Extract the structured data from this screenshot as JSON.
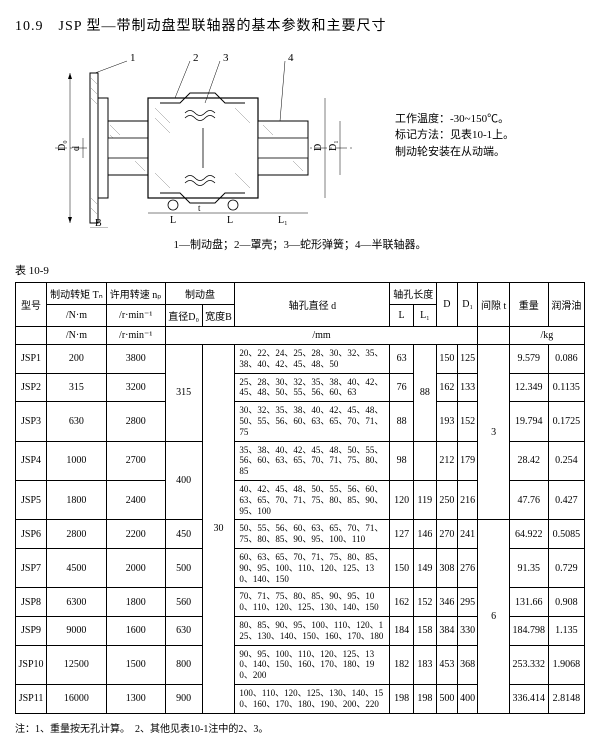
{
  "title": "10.9　JSP 型—带制动盘型联轴器的基本参数和主要尺寸",
  "diagram": {
    "part_labels": [
      "1",
      "2",
      "3",
      "4"
    ],
    "dim_labels": [
      "D₀",
      "d",
      "L",
      "t",
      "L",
      "L₁",
      "D",
      "D₁",
      "B"
    ]
  },
  "notes": {
    "line1": "工作温度：-30~150℃。",
    "line2": "标记方法：见表10-1上。",
    "line3": "制动轮安装在从动端。"
  },
  "caption": "1—制动盘；2—罩壳；3—蛇形弹簧；4—半联轴器。",
  "table_label": "表 10-9",
  "headers": {
    "model": "型号",
    "tn": "制动转矩\nTₙ",
    "np": "许用转速\nnₚ",
    "brake_disc": "制动盘",
    "d0": "直径D₀",
    "b": "宽度B",
    "d": "轴孔直径\nd",
    "bore_len": "轴孔长度",
    "l": "L",
    "l1": "L₁",
    "D": "D",
    "D1": "D₁",
    "t": "间隙\nt",
    "weight": "重量",
    "oil": "润滑油",
    "unit_nm": "/N·m",
    "unit_rpm": "/r·min⁻¹",
    "unit_mm": "/mm",
    "unit_kg": "/kg"
  },
  "rows": [
    {
      "model": "JSP1",
      "tn": "200",
      "np": "3800",
      "d0": "315",
      "b": "30",
      "d": "20、22、24、25、28、30、32、35、38、40、42、45、48、50",
      "l": "63",
      "l1": "",
      "ls": "88",
      "D": "150",
      "D1": "125",
      "t": "3",
      "w": "9.579",
      "oil": "0.086"
    },
    {
      "model": "JSP2",
      "tn": "315",
      "np": "3200",
      "d": "25、28、30、32、35、38、40、42、45、48、50、55、56、60、63",
      "l": "76",
      "l1": "",
      "D": "162",
      "D1": "133",
      "w": "12.349",
      "oil": "0.1135"
    },
    {
      "model": "JSP3",
      "tn": "630",
      "np": "2800",
      "d": "30、32、35、38、40、42、45、48、50、55、56、60、63、65、70、71、75",
      "l": "88",
      "l1": "",
      "D": "193",
      "D1": "152",
      "w": "19.794",
      "oil": "0.1725"
    },
    {
      "model": "JSP4",
      "tn": "1000",
      "np": "2700",
      "d0": "400",
      "d": "35、38、40、42、45、48、50、55、56、60、63、65、70、71、75、80、85",
      "l": "98",
      "l1": "",
      "D": "212",
      "D1": "179",
      "w": "28.42",
      "oil": "0.254"
    },
    {
      "model": "JSP5",
      "tn": "1800",
      "np": "2400",
      "d": "40、42、45、48、50、55、56、60、63、65、70、71、75、80、85、90、95、100",
      "l": "120",
      "l1": "119",
      "D": "250",
      "D1": "216",
      "w": "47.76",
      "oil": "0.427"
    },
    {
      "model": "JSP6",
      "tn": "2800",
      "np": "2200",
      "d0": "450",
      "d": "50、55、56、60、63、65、70、71、75、80、85、90、95、100、110",
      "l": "127",
      "l1": "146",
      "D": "270",
      "D1": "241",
      "t": "6",
      "w": "64.922",
      "oil": "0.5085"
    },
    {
      "model": "JSP7",
      "tn": "4500",
      "np": "2000",
      "d0": "500",
      "d": "60、63、65、70、71、75、80、85、90、95、100、110、120、125、130、140、150",
      "l": "150",
      "l1": "149",
      "D": "308",
      "D1": "276",
      "w": "91.35",
      "oil": "0.729"
    },
    {
      "model": "JSP8",
      "tn": "6300",
      "np": "1800",
      "d0": "560",
      "d": "70、71、75、80、85、90、95、100、110、120、125、130、140、150",
      "l": "162",
      "l1": "152",
      "D": "346",
      "D1": "295",
      "w": "131.66",
      "oil": "0.908"
    },
    {
      "model": "JSP9",
      "tn": "9000",
      "np": "1600",
      "d0": "630",
      "d": "80、85、90、95、100、110、120、125、130、140、150、160、170、180",
      "l": "184",
      "l1": "158",
      "D": "384",
      "D1": "330",
      "w": "184.798",
      "oil": "1.135"
    },
    {
      "model": "JSP10",
      "tn": "12500",
      "np": "1500",
      "d0": "800",
      "d": "90、95、100、110、120、125、130、140、150、160、170、180、190、200",
      "l": "182",
      "l1": "183",
      "D": "453",
      "D1": "368",
      "w": "253.332",
      "oil": "1.9068"
    },
    {
      "model": "JSP11",
      "tn": "16000",
      "np": "1300",
      "d0": "900",
      "d": "100、110、120、125、130、140、150、160、170、180、190、200、220",
      "l": "198",
      "l1": "198",
      "D": "500",
      "D1": "400",
      "w": "336.414",
      "oil": "2.8148"
    }
  ],
  "footnote": "注：1、重量按无孔计算。　2、其他见表10-1注中的2、3。",
  "colors": {
    "stroke": "#000000",
    "hatch": "#888888",
    "bg": "#ffffff"
  }
}
